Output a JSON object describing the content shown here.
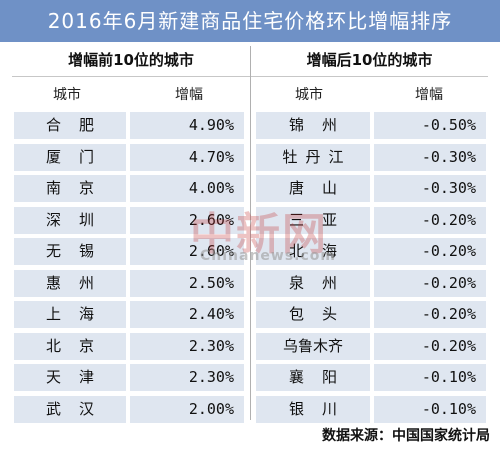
{
  "title": "2016年6月新建商品住宅价格环比增幅排序",
  "chart_data": [
    {
      "type": "table",
      "section_header": "增幅前10位的城市",
      "columns": [
        "城市",
        "增幅"
      ],
      "rows": [
        {
          "city": "合肥",
          "value": "4.90%"
        },
        {
          "city": "厦门",
          "value": "4.70%"
        },
        {
          "city": "南京",
          "value": "4.00%"
        },
        {
          "city": "深圳",
          "value": "2.60%"
        },
        {
          "city": "无锡",
          "value": "2.60%"
        },
        {
          "city": "惠州",
          "value": "2.50%"
        },
        {
          "city": "上海",
          "value": "2.40%"
        },
        {
          "city": "北京",
          "value": "2.30%"
        },
        {
          "city": "天津",
          "value": "2.30%"
        },
        {
          "city": "武汉",
          "value": "2.00%"
        }
      ]
    },
    {
      "type": "table",
      "section_header": "增幅后10位的城市",
      "columns": [
        "城市",
        "增幅"
      ],
      "rows": [
        {
          "city": "锦州",
          "value": "-0.50%"
        },
        {
          "city": "牡丹江",
          "value": "-0.30%"
        },
        {
          "city": "唐山",
          "value": "-0.30%"
        },
        {
          "city": "三亚",
          "value": "-0.20%"
        },
        {
          "city": "北海",
          "value": "-0.20%"
        },
        {
          "city": "泉州",
          "value": "-0.20%"
        },
        {
          "city": "包头",
          "value": "-0.20%"
        },
        {
          "city": "乌鲁木齐",
          "value": "-0.20%"
        },
        {
          "city": "襄阳",
          "value": "-0.10%"
        },
        {
          "city": "银川",
          "value": "-0.10%"
        }
      ]
    }
  ],
  "source": "数据来源：中国国家统计局",
  "watermark": {
    "mark": "中新网",
    "url": "Chinanews.com"
  }
}
